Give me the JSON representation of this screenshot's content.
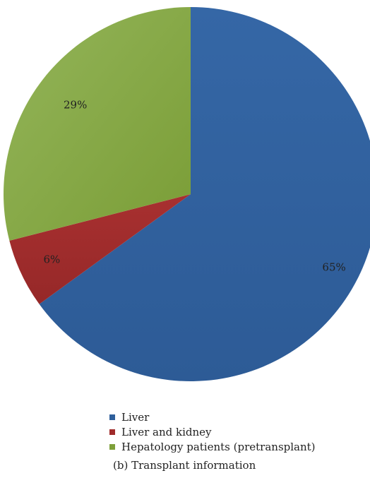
{
  "chart_data": {
    "type": "pie",
    "caption": "(b)  Transplant information",
    "slices": [
      {
        "label": "Liver",
        "value": 65,
        "display": "65%",
        "color": "#2f5f9b"
      },
      {
        "label": "Liver and kidney",
        "value": 6,
        "display": "6%",
        "color": "#a02b2b"
      },
      {
        "label": "Hepatology patients (pretransplant)",
        "value": 29,
        "display": "29%",
        "color": "#7ea03a"
      }
    ],
    "legend": {
      "position": "bottom"
    }
  }
}
